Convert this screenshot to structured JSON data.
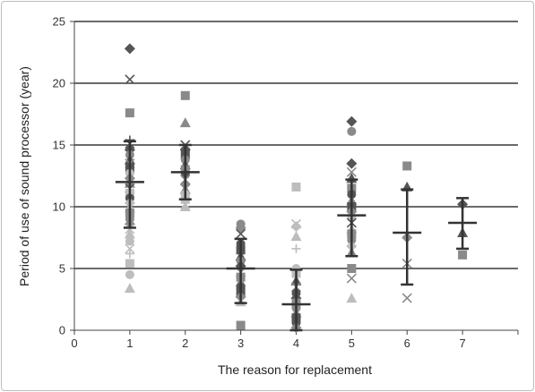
{
  "chart_data": {
    "type": "scatter",
    "xlabel": "The reason for replacement",
    "ylabel": "Period of use of sound processor (year)",
    "xlim": [
      0,
      8
    ],
    "ylim": [
      0,
      25
    ],
    "x_ticks": [
      0,
      1,
      2,
      3,
      4,
      5,
      6,
      7
    ],
    "y_ticks": [
      0,
      5,
      10,
      15,
      20,
      25
    ],
    "grid": "horizontal",
    "colors": {
      "dark": "#555555",
      "mid": "#8a8a8a",
      "light": "#bdbdbd",
      "errorbar": "#333333"
    },
    "points": [
      {
        "x": 1,
        "y": 22.8,
        "m": "diamond",
        "c": "dark"
      },
      {
        "x": 1,
        "y": 20.3,
        "m": "x",
        "c": "dark"
      },
      {
        "x": 1,
        "y": 17.6,
        "m": "square",
        "c": "mid"
      },
      {
        "x": 1,
        "y": 15.4,
        "m": "plus",
        "c": "dark"
      },
      {
        "x": 1,
        "y": 15.1,
        "m": "x",
        "c": "dark"
      },
      {
        "x": 1,
        "y": 14.6,
        "m": "diamond",
        "c": "dark"
      },
      {
        "x": 1,
        "y": 14.2,
        "m": "circle",
        "c": "mid"
      },
      {
        "x": 1,
        "y": 13.8,
        "m": "triangle",
        "c": "dark"
      },
      {
        "x": 1,
        "y": 13.5,
        "m": "x",
        "c": "mid"
      },
      {
        "x": 1,
        "y": 13.1,
        "m": "square",
        "c": "dark"
      },
      {
        "x": 1,
        "y": 12.7,
        "m": "circle",
        "c": "light"
      },
      {
        "x": 1,
        "y": 12.3,
        "m": "diamond",
        "c": "mid"
      },
      {
        "x": 1,
        "y": 11.9,
        "m": "triangle",
        "c": "mid"
      },
      {
        "x": 1,
        "y": 11.5,
        "m": "x",
        "c": "dark"
      },
      {
        "x": 1,
        "y": 11.1,
        "m": "square",
        "c": "light"
      },
      {
        "x": 1,
        "y": 10.7,
        "m": "circle",
        "c": "dark"
      },
      {
        "x": 1,
        "y": 10.3,
        "m": "diamond",
        "c": "light"
      },
      {
        "x": 1,
        "y": 9.9,
        "m": "triangle",
        "c": "light"
      },
      {
        "x": 1,
        "y": 9.5,
        "m": "square",
        "c": "mid"
      },
      {
        "x": 1,
        "y": 9.0,
        "m": "circle",
        "c": "mid"
      },
      {
        "x": 1,
        "y": 8.6,
        "m": "diamond",
        "c": "mid"
      },
      {
        "x": 1,
        "y": 8.2,
        "m": "x",
        "c": "light"
      },
      {
        "x": 1,
        "y": 7.8,
        "m": "triangle",
        "c": "light"
      },
      {
        "x": 1,
        "y": 7.2,
        "m": "circle",
        "c": "light"
      },
      {
        "x": 1,
        "y": 6.6,
        "m": "x",
        "c": "light"
      },
      {
        "x": 1,
        "y": 6.2,
        "m": "plus",
        "c": "light"
      },
      {
        "x": 1,
        "y": 5.4,
        "m": "square",
        "c": "light"
      },
      {
        "x": 1,
        "y": 4.5,
        "m": "circle",
        "c": "light"
      },
      {
        "x": 1,
        "y": 3.4,
        "m": "triangle",
        "c": "light"
      },
      {
        "x": 2,
        "y": 19.0,
        "m": "square",
        "c": "mid"
      },
      {
        "x": 2,
        "y": 16.8,
        "m": "triangle",
        "c": "mid"
      },
      {
        "x": 2,
        "y": 15.0,
        "m": "x",
        "c": "dark"
      },
      {
        "x": 2,
        "y": 14.6,
        "m": "diamond",
        "c": "dark"
      },
      {
        "x": 2,
        "y": 14.2,
        "m": "square",
        "c": "dark"
      },
      {
        "x": 2,
        "y": 13.8,
        "m": "circle",
        "c": "mid"
      },
      {
        "x": 2,
        "y": 13.4,
        "m": "triangle",
        "c": "dark"
      },
      {
        "x": 2,
        "y": 13.0,
        "m": "square",
        "c": "mid"
      },
      {
        "x": 2,
        "y": 12.6,
        "m": "circle",
        "c": "dark"
      },
      {
        "x": 2,
        "y": 12.2,
        "m": "x",
        "c": "mid"
      },
      {
        "x": 2,
        "y": 11.8,
        "m": "diamond",
        "c": "mid"
      },
      {
        "x": 2,
        "y": 11.4,
        "m": "triangle",
        "c": "mid"
      },
      {
        "x": 2,
        "y": 11.0,
        "m": "circle",
        "c": "light"
      },
      {
        "x": 2,
        "y": 10.6,
        "m": "square",
        "c": "light"
      },
      {
        "x": 2,
        "y": 10.2,
        "m": "x",
        "c": "light"
      },
      {
        "x": 2,
        "y": 10.0,
        "m": "triangle",
        "c": "light"
      },
      {
        "x": 3,
        "y": 8.6,
        "m": "circle",
        "c": "mid"
      },
      {
        "x": 3,
        "y": 8.3,
        "m": "diamond",
        "c": "mid"
      },
      {
        "x": 3,
        "y": 7.8,
        "m": "x",
        "c": "dark"
      },
      {
        "x": 3,
        "y": 7.0,
        "m": "circle",
        "c": "dark"
      },
      {
        "x": 3,
        "y": 6.5,
        "m": "square",
        "c": "dark"
      },
      {
        "x": 3,
        "y": 6.0,
        "m": "triangle",
        "c": "dark"
      },
      {
        "x": 3,
        "y": 5.6,
        "m": "circle",
        "c": "mid"
      },
      {
        "x": 3,
        "y": 5.2,
        "m": "diamond",
        "c": "dark"
      },
      {
        "x": 3,
        "y": 4.7,
        "m": "x",
        "c": "mid"
      },
      {
        "x": 3,
        "y": 4.3,
        "m": "square",
        "c": "mid"
      },
      {
        "x": 3,
        "y": 3.9,
        "m": "triangle",
        "c": "mid"
      },
      {
        "x": 3,
        "y": 3.5,
        "m": "circle",
        "c": "dark"
      },
      {
        "x": 3,
        "y": 3.1,
        "m": "square",
        "c": "dark"
      },
      {
        "x": 3,
        "y": 2.7,
        "m": "diamond",
        "c": "mid"
      },
      {
        "x": 3,
        "y": 2.3,
        "m": "triangle",
        "c": "light"
      },
      {
        "x": 3,
        "y": 0.4,
        "m": "square",
        "c": "mid"
      },
      {
        "x": 4,
        "y": 11.6,
        "m": "square",
        "c": "light"
      },
      {
        "x": 4,
        "y": 8.6,
        "m": "x",
        "c": "light"
      },
      {
        "x": 4,
        "y": 8.4,
        "m": "diamond",
        "c": "light"
      },
      {
        "x": 4,
        "y": 7.6,
        "m": "triangle",
        "c": "light"
      },
      {
        "x": 4,
        "y": 6.6,
        "m": "plus",
        "c": "light"
      },
      {
        "x": 4,
        "y": 5.0,
        "m": "circle",
        "c": "light"
      },
      {
        "x": 4,
        "y": 4.6,
        "m": "square",
        "c": "light"
      },
      {
        "x": 4,
        "y": 4.0,
        "m": "triangle",
        "c": "dark"
      },
      {
        "x": 4,
        "y": 3.5,
        "m": "x",
        "c": "mid"
      },
      {
        "x": 4,
        "y": 3.0,
        "m": "circle",
        "c": "dark"
      },
      {
        "x": 4,
        "y": 2.6,
        "m": "diamond",
        "c": "dark"
      },
      {
        "x": 4,
        "y": 2.2,
        "m": "square",
        "c": "mid"
      },
      {
        "x": 4,
        "y": 1.8,
        "m": "circle",
        "c": "mid"
      },
      {
        "x": 4,
        "y": 1.4,
        "m": "triangle",
        "c": "mid"
      },
      {
        "x": 4,
        "y": 1.0,
        "m": "square",
        "c": "dark"
      },
      {
        "x": 4,
        "y": 0.6,
        "m": "circle",
        "c": "dark"
      },
      {
        "x": 4,
        "y": 0.2,
        "m": "diamond",
        "c": "mid"
      },
      {
        "x": 5,
        "y": 16.9,
        "m": "diamond",
        "c": "dark"
      },
      {
        "x": 5,
        "y": 16.1,
        "m": "circle",
        "c": "mid"
      },
      {
        "x": 5,
        "y": 13.5,
        "m": "diamond",
        "c": "dark"
      },
      {
        "x": 5,
        "y": 12.8,
        "m": "x",
        "c": "mid"
      },
      {
        "x": 5,
        "y": 12.3,
        "m": "triangle",
        "c": "dark"
      },
      {
        "x": 5,
        "y": 11.5,
        "m": "square",
        "c": "mid"
      },
      {
        "x": 5,
        "y": 11.0,
        "m": "circle",
        "c": "dark"
      },
      {
        "x": 5,
        "y": 10.5,
        "m": "triangle",
        "c": "mid"
      },
      {
        "x": 5,
        "y": 10.0,
        "m": "square",
        "c": "dark"
      },
      {
        "x": 5,
        "y": 9.6,
        "m": "diamond",
        "c": "mid"
      },
      {
        "x": 5,
        "y": 9.1,
        "m": "circle",
        "c": "light"
      },
      {
        "x": 5,
        "y": 8.7,
        "m": "x",
        "c": "dark"
      },
      {
        "x": 5,
        "y": 8.2,
        "m": "triangle",
        "c": "light"
      },
      {
        "x": 5,
        "y": 7.8,
        "m": "square",
        "c": "mid"
      },
      {
        "x": 5,
        "y": 7.3,
        "m": "circle",
        "c": "mid"
      },
      {
        "x": 5,
        "y": 6.8,
        "m": "diamond",
        "c": "light"
      },
      {
        "x": 5,
        "y": 6.3,
        "m": "triangle",
        "c": "mid"
      },
      {
        "x": 5,
        "y": 5.0,
        "m": "square",
        "c": "mid"
      },
      {
        "x": 5,
        "y": 4.2,
        "m": "x",
        "c": "mid"
      },
      {
        "x": 5,
        "y": 2.6,
        "m": "triangle",
        "c": "light"
      },
      {
        "x": 6,
        "y": 13.3,
        "m": "square",
        "c": "mid"
      },
      {
        "x": 6,
        "y": 11.6,
        "m": "triangle",
        "c": "dark"
      },
      {
        "x": 6,
        "y": 7.5,
        "m": "diamond",
        "c": "mid"
      },
      {
        "x": 6,
        "y": 5.4,
        "m": "x",
        "c": "mid"
      },
      {
        "x": 6,
        "y": 2.6,
        "m": "x",
        "c": "mid"
      },
      {
        "x": 7,
        "y": 10.2,
        "m": "diamond",
        "c": "dark"
      },
      {
        "x": 7,
        "y": 7.9,
        "m": "triangle",
        "c": "dark"
      },
      {
        "x": 7,
        "y": 6.1,
        "m": "square",
        "c": "mid"
      }
    ],
    "error_bars": [
      {
        "x": 1,
        "mean": 12.0,
        "low": 8.3,
        "high": 15.3
      },
      {
        "x": 2,
        "mean": 12.8,
        "low": 10.6,
        "high": 15.0
      },
      {
        "x": 3,
        "mean": 5.0,
        "low": 2.2,
        "high": 7.4
      },
      {
        "x": 4,
        "mean": 2.1,
        "low": 0.0,
        "high": 4.9
      },
      {
        "x": 5,
        "mean": 9.3,
        "low": 6.0,
        "high": 12.2
      },
      {
        "x": 6,
        "mean": 7.9,
        "low": 3.7,
        "high": 11.4
      },
      {
        "x": 7,
        "mean": 8.7,
        "low": 6.6,
        "high": 10.7
      }
    ]
  }
}
